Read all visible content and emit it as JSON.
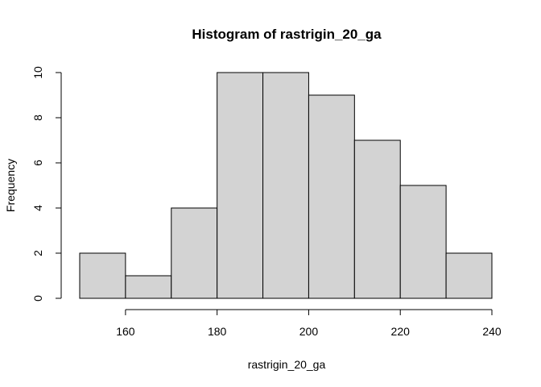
{
  "chart_data": {
    "type": "bar",
    "title": "Histogram of rastrigin_20_ga",
    "xlabel": "rastrigin_20_ga",
    "ylabel": "Frequency",
    "bins": [
      {
        "start": 150,
        "end": 160,
        "count": 2
      },
      {
        "start": 160,
        "end": 170,
        "count": 1
      },
      {
        "start": 170,
        "end": 180,
        "count": 4
      },
      {
        "start": 180,
        "end": 190,
        "count": 10
      },
      {
        "start": 190,
        "end": 200,
        "count": 10
      },
      {
        "start": 200,
        "end": 210,
        "count": 9
      },
      {
        "start": 210,
        "end": 220,
        "count": 7
      },
      {
        "start": 220,
        "end": 230,
        "count": 5
      },
      {
        "start": 230,
        "end": 240,
        "count": 2
      }
    ],
    "xlim": [
      150,
      240
    ],
    "ylim": [
      0,
      10
    ],
    "x_ticks": [
      "160",
      "180",
      "200",
      "220",
      "240"
    ],
    "y_ticks": [
      "0",
      "2",
      "4",
      "6",
      "8",
      "10"
    ],
    "grid": false,
    "colors": {
      "bar_fill": "#d3d3d3",
      "bar_stroke": "#000000"
    }
  }
}
